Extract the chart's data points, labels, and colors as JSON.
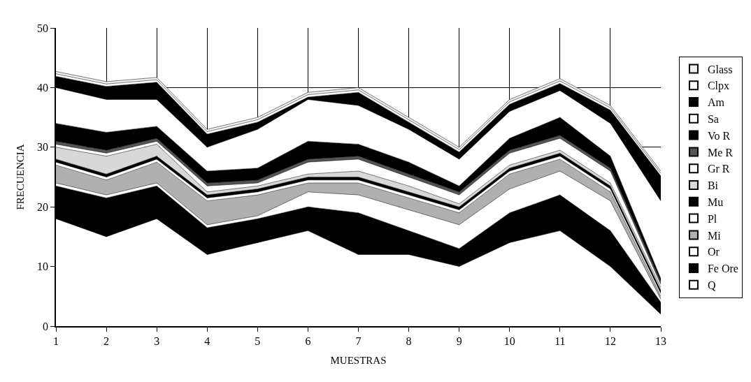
{
  "chart_data": {
    "type": "area",
    "stacked": true,
    "xlabel": "MUESTRAS",
    "ylabel": "FRECUENCIA",
    "x": [
      1,
      2,
      3,
      4,
      5,
      6,
      7,
      8,
      9,
      10,
      11,
      12,
      13
    ],
    "xlim": [
      1,
      13
    ],
    "xticks": [
      1,
      2,
      3,
      4,
      5,
      6,
      7,
      8,
      9,
      10,
      11,
      12,
      13
    ],
    "ylim": [
      0,
      50
    ],
    "yticks": [
      0,
      10,
      20,
      30,
      40,
      50
    ],
    "grid": true,
    "legend": "right",
    "series": [
      {
        "name": "Q",
        "color": "#ffffff",
        "values": [
          18,
          15,
          18,
          12,
          14,
          16,
          12,
          12,
          10,
          14,
          16,
          10,
          2
        ]
      },
      {
        "name": "Fe Ore",
        "color": "#000000",
        "values": [
          5.5,
          6.5,
          5.5,
          4.5,
          4,
          4,
          7,
          4,
          3,
          5,
          6,
          6,
          2
        ]
      },
      {
        "name": "Or",
        "color": "#ffffff",
        "values": [
          0.5,
          0.5,
          0.5,
          0.5,
          0.5,
          2.5,
          3,
          3.5,
          4,
          4,
          4,
          5,
          0.5
        ]
      },
      {
        "name": "Mi",
        "color": "#b0b0b0",
        "values": [
          3,
          2.5,
          3.5,
          4,
          3.5,
          1.5,
          2,
          2,
          2,
          2.5,
          2,
          1.5,
          0.5
        ]
      },
      {
        "name": "Pl",
        "color": "#ffffff",
        "values": [
          0.5,
          0.5,
          0.5,
          0.5,
          0.5,
          0.5,
          0.5,
          0.5,
          0.5,
          0.5,
          0.5,
          0.5,
          0.5
        ]
      },
      {
        "name": "Mu",
        "color": "#000000",
        "values": [
          0.5,
          0.5,
          0.5,
          0.5,
          0.5,
          0.5,
          0.5,
          0.5,
          0.5,
          0.5,
          0.5,
          0.5,
          0.5
        ]
      },
      {
        "name": "Bi",
        "color": "#d8d8d8",
        "values": [
          2,
          3,
          2,
          0.5,
          0.5,
          0.5,
          1,
          1,
          0.5,
          0.5,
          0.5,
          0.5,
          0.5
        ]
      },
      {
        "name": "Gr R",
        "color": "#ffffff",
        "values": [
          0.5,
          0.5,
          0.5,
          1,
          0.5,
          2,
          2,
          1.5,
          1.5,
          2,
          2,
          2,
          0.5
        ]
      },
      {
        "name": "Me R",
        "color": "#555555",
        "values": [
          0.5,
          0.5,
          0.5,
          0.5,
          0.5,
          0.5,
          0.5,
          0.5,
          0.5,
          0.5,
          0.5,
          0.5,
          0.5
        ]
      },
      {
        "name": "Vo R",
        "color": "#000000",
        "values": [
          3,
          3,
          2,
          2,
          2,
          3,
          2,
          2,
          1,
          2,
          3,
          2,
          0.5
        ]
      },
      {
        "name": "Sa",
        "color": "#ffffff",
        "values": [
          6,
          5.5,
          4.5,
          4,
          6.5,
          7,
          6.5,
          5.5,
          4.5,
          4.5,
          4.5,
          5.5,
          13
        ]
      },
      {
        "name": "Am",
        "color": "#000000",
        "values": [
          1.9,
          2.2,
          2.9,
          2.2,
          1.2,
          0.4,
          2.2,
          1.2,
          1.2,
          1.2,
          1.2,
          2.2,
          4.2
        ]
      },
      {
        "name": "Clpx",
        "color": "#ffffff",
        "values": [
          0.4,
          0.4,
          0.4,
          0.4,
          0.4,
          0.4,
          0.4,
          0.4,
          0.4,
          0.4,
          0.4,
          0.4,
          0.4
        ]
      },
      {
        "name": "Glass",
        "color": "#eeeeee",
        "values": [
          0.4,
          0.4,
          0.4,
          0.4,
          0.4,
          0.4,
          0.4,
          0.4,
          0.4,
          0.4,
          0.4,
          0.4,
          0.4
        ]
      }
    ]
  }
}
